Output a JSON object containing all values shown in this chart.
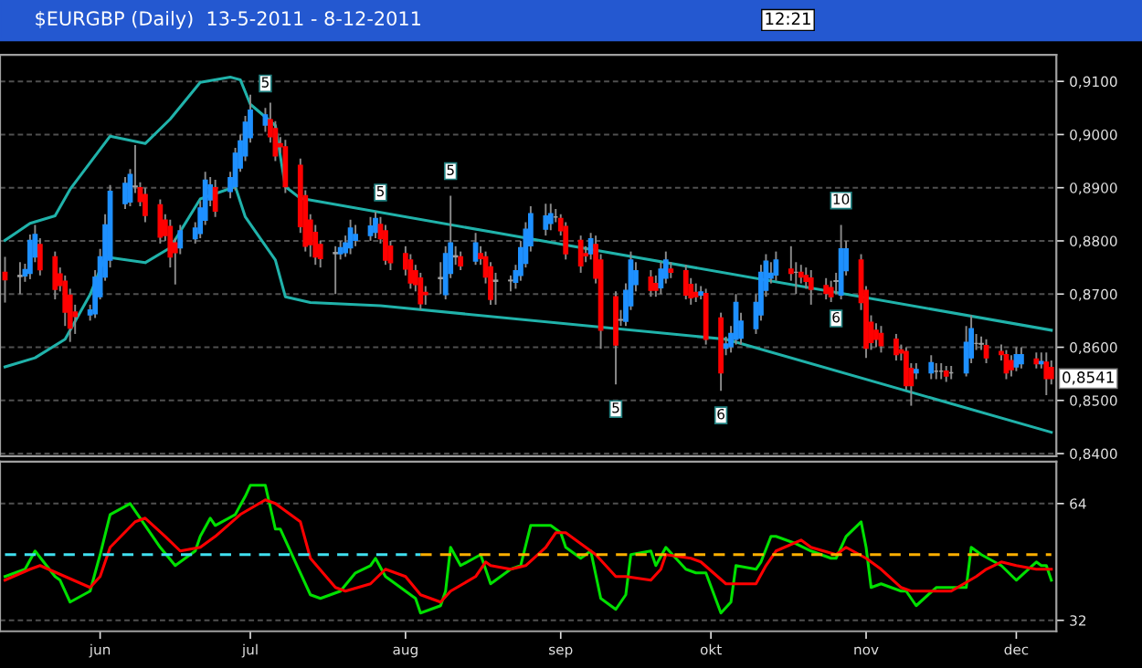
{
  "chart_data": [
    {
      "type": "candlestick",
      "title": "$EURGBP (Daily)  13-5-2011 - 8-12-2011",
      "x": [
        "2011-05-13",
        "2011-05-16",
        "2011-05-17",
        "2011-05-18",
        "2011-05-19",
        "2011-05-20",
        "2011-05-23",
        "2011-05-24",
        "2011-05-25",
        "2011-05-26",
        "2011-05-27",
        "2011-05-30",
        "2011-05-31",
        "2011-06-01",
        "2011-06-02",
        "2011-06-03",
        "2011-06-06",
        "2011-06-07",
        "2011-06-08",
        "2011-06-09",
        "2011-06-10",
        "2011-06-13",
        "2011-06-14",
        "2011-06-15",
        "2011-06-16",
        "2011-06-17",
        "2011-06-20",
        "2011-06-21",
        "2011-06-22",
        "2011-06-23",
        "2011-06-24",
        "2011-06-27",
        "2011-06-28",
        "2011-06-29",
        "2011-06-30",
        "2011-07-01",
        "2011-07-04",
        "2011-07-05",
        "2011-07-06",
        "2011-07-07",
        "2011-07-08",
        "2011-07-11",
        "2011-07-12",
        "2011-07-13",
        "2011-07-14",
        "2011-07-15",
        "2011-07-18",
        "2011-07-19",
        "2011-07-20",
        "2011-07-21",
        "2011-07-22",
        "2011-07-25",
        "2011-07-26",
        "2011-07-27",
        "2011-07-28",
        "2011-07-29",
        "2011-08-01",
        "2011-08-02",
        "2011-08-03",
        "2011-08-04",
        "2011-08-05",
        "2011-08-08",
        "2011-08-09",
        "2011-08-10",
        "2011-08-11",
        "2011-08-12",
        "2011-08-15",
        "2011-08-16",
        "2011-08-17",
        "2011-08-18",
        "2011-08-19",
        "2011-08-22",
        "2011-08-23",
        "2011-08-24",
        "2011-08-25",
        "2011-08-26",
        "2011-08-29",
        "2011-08-30",
        "2011-08-31",
        "2011-09-01",
        "2011-09-02",
        "2011-09-05",
        "2011-09-06",
        "2011-09-07",
        "2011-09-08",
        "2011-09-09",
        "2011-09-12",
        "2011-09-13",
        "2011-09-14",
        "2011-09-15",
        "2011-09-16",
        "2011-09-19",
        "2011-09-20",
        "2011-09-21",
        "2011-09-22",
        "2011-09-23",
        "2011-09-26",
        "2011-09-27",
        "2011-09-28",
        "2011-09-29",
        "2011-09-30",
        "2011-10-03",
        "2011-10-04",
        "2011-10-05",
        "2011-10-06",
        "2011-10-07",
        "2011-10-10",
        "2011-10-11",
        "2011-10-12",
        "2011-10-13",
        "2011-10-14",
        "2011-10-17",
        "2011-10-18",
        "2011-10-19",
        "2011-10-20",
        "2011-10-21",
        "2011-10-24",
        "2011-10-25",
        "2011-10-26",
        "2011-10-27",
        "2011-10-28",
        "2011-10-31",
        "2011-11-01",
        "2011-11-02",
        "2011-11-03",
        "2011-11-04",
        "2011-11-07",
        "2011-11-08",
        "2011-11-09",
        "2011-11-10",
        "2011-11-11",
        "2011-11-14",
        "2011-11-15",
        "2011-11-16",
        "2011-11-17",
        "2011-11-18",
        "2011-11-21",
        "2011-11-22",
        "2011-11-23",
        "2011-11-24",
        "2011-11-25",
        "2011-11-28",
        "2011-11-29",
        "2011-11-30",
        "2011-12-01",
        "2011-12-02",
        "2011-12-05",
        "2011-12-06",
        "2011-12-07",
        "2011-12-08"
      ],
      "ohlc": [
        [
          0.8741,
          0.877,
          0.8684,
          0.8727
        ],
        [
          0.8733,
          0.876,
          0.87,
          0.8735
        ],
        [
          0.8734,
          0.8757,
          0.8723,
          0.8746
        ],
        [
          0.8739,
          0.8812,
          0.8728,
          0.8801
        ],
        [
          0.877,
          0.883,
          0.876,
          0.8812
        ],
        [
          0.8793,
          0.8805,
          0.8735,
          0.8746
        ],
        [
          0.877,
          0.878,
          0.869,
          0.8709
        ],
        [
          0.8738,
          0.875,
          0.8705,
          0.8716
        ],
        [
          0.8724,
          0.8735,
          0.864,
          0.8666
        ],
        [
          0.8698,
          0.871,
          0.861,
          0.8636
        ],
        [
          0.8666,
          0.868,
          0.8625,
          0.8658
        ],
        [
          0.8661,
          0.868,
          0.865,
          0.867
        ],
        [
          0.8663,
          0.8745,
          0.8655,
          0.8732
        ],
        [
          0.8695,
          0.8785,
          0.869,
          0.877
        ],
        [
          0.8732,
          0.885,
          0.8725,
          0.883
        ],
        [
          0.8764,
          0.8905,
          0.875,
          0.8893
        ],
        [
          0.887,
          0.892,
          0.886,
          0.8908
        ],
        [
          0.8873,
          0.8935,
          0.8865,
          0.8925
        ],
        [
          0.8903,
          0.898,
          0.889,
          0.8902
        ],
        [
          0.89,
          0.891,
          0.8865,
          0.8874
        ],
        [
          0.8887,
          0.89,
          0.8835,
          0.8848
        ],
        [
          0.8868,
          0.8878,
          0.8795,
          0.8807
        ],
        [
          0.8839,
          0.885,
          0.88,
          0.881
        ],
        [
          0.8827,
          0.884,
          0.875,
          0.877
        ],
        [
          0.8796,
          0.8805,
          0.8718,
          0.8778
        ],
        [
          0.8787,
          0.883,
          0.8775,
          0.8819
        ],
        [
          0.8804,
          0.8835,
          0.8795,
          0.8824
        ],
        [
          0.8814,
          0.8875,
          0.8805,
          0.8862
        ],
        [
          0.8839,
          0.893,
          0.883,
          0.8914
        ],
        [
          0.8877,
          0.892,
          0.8865,
          0.8905
        ],
        [
          0.89,
          0.8915,
          0.8845,
          0.8856
        ],
        [
          0.8893,
          0.893,
          0.888,
          0.8919
        ],
        [
          0.8902,
          0.8975,
          0.8895,
          0.8965
        ],
        [
          0.8937,
          0.9,
          0.893,
          0.8988
        ],
        [
          0.896,
          0.9035,
          0.895,
          0.9023
        ],
        [
          0.8994,
          0.9075,
          0.8985,
          0.9046
        ],
        [
          0.9018,
          0.905,
          0.9005,
          0.9037
        ],
        [
          0.9028,
          0.906,
          0.8985,
          0.8996
        ],
        [
          0.9011,
          0.9025,
          0.895,
          0.896
        ],
        [
          0.8983,
          0.8995,
          0.8965,
          0.8977
        ],
        [
          0.8977,
          0.899,
          0.889,
          0.8902
        ],
        [
          0.8942,
          0.8955,
          0.8815,
          0.8827
        ],
        [
          0.8885,
          0.8895,
          0.878,
          0.879
        ],
        [
          0.8839,
          0.885,
          0.877,
          0.8793
        ],
        [
          0.8816,
          0.883,
          0.8755,
          0.877
        ],
        [
          0.8793,
          0.88,
          0.875,
          0.8767
        ],
        [
          0.8778,
          0.879,
          0.87,
          0.8776
        ],
        [
          0.8776,
          0.88,
          0.8765,
          0.8787
        ],
        [
          0.8778,
          0.881,
          0.877,
          0.8796
        ],
        [
          0.8787,
          0.884,
          0.8775,
          0.8824
        ],
        [
          0.8801,
          0.883,
          0.879,
          0.8812
        ],
        [
          0.881,
          0.8845,
          0.88,
          0.8828
        ],
        [
          0.8816,
          0.8855,
          0.8805,
          0.8842
        ],
        [
          0.8831,
          0.8845,
          0.8795,
          0.8804
        ],
        [
          0.8819,
          0.883,
          0.8755,
          0.8764
        ],
        [
          0.879,
          0.88,
          0.8745,
          0.8759
        ],
        [
          0.8776,
          0.879,
          0.8735,
          0.8747
        ],
        [
          0.8764,
          0.8775,
          0.871,
          0.8721
        ],
        [
          0.8744,
          0.8755,
          0.8705,
          0.8718
        ],
        [
          0.873,
          0.874,
          0.867,
          0.8682
        ],
        [
          0.8703,
          0.8715,
          0.868,
          0.8699
        ],
        [
          0.8729,
          0.876,
          0.87,
          0.8731
        ],
        [
          0.8699,
          0.879,
          0.869,
          0.8776
        ],
        [
          0.8739,
          0.8885,
          0.873,
          0.8796
        ],
        [
          0.877,
          0.879,
          0.8755,
          0.8772
        ],
        [
          0.877,
          0.878,
          0.8745,
          0.8753
        ],
        [
          0.8762,
          0.8815,
          0.8755,
          0.8796
        ],
        [
          0.8776,
          0.879,
          0.8755,
          0.8767
        ],
        [
          0.877,
          0.878,
          0.872,
          0.8732
        ],
        [
          0.8751,
          0.876,
          0.868,
          0.869
        ],
        [
          0.8724,
          0.874,
          0.868,
          0.8726
        ],
        [
          0.8726,
          0.8735,
          0.8705,
          0.8725
        ],
        [
          0.8722,
          0.8755,
          0.871,
          0.8744
        ],
        [
          0.8735,
          0.88,
          0.8725,
          0.8787
        ],
        [
          0.8758,
          0.8835,
          0.875,
          0.8822
        ],
        [
          0.8791,
          0.8865,
          0.878,
          0.8851
        ],
        [
          0.8822,
          0.887,
          0.881,
          0.8847
        ],
        [
          0.8833,
          0.887,
          0.882,
          0.8851
        ],
        [
          0.8845,
          0.886,
          0.8835,
          0.8845
        ],
        [
          0.8842,
          0.885,
          0.881,
          0.8819
        ],
        [
          0.8827,
          0.8835,
          0.8765,
          0.8776
        ],
        [
          0.8801,
          0.881,
          0.874,
          0.8753
        ],
        [
          0.8776,
          0.879,
          0.876,
          0.8772
        ],
        [
          0.8776,
          0.8815,
          0.8765,
          0.8804
        ],
        [
          0.8793,
          0.881,
          0.872,
          0.873
        ],
        [
          0.8764,
          0.8775,
          0.8597,
          0.8632
        ],
        [
          0.8695,
          0.8705,
          0.853,
          0.8604
        ],
        [
          0.8651,
          0.867,
          0.864,
          0.8652
        ],
        [
          0.8649,
          0.872,
          0.864,
          0.8707
        ],
        [
          0.8678,
          0.878,
          0.867,
          0.8764
        ],
        [
          0.8718,
          0.876,
          0.8705,
          0.8744
        ],
        [
          0.8732,
          0.8745,
          0.8695,
          0.8707
        ],
        [
          0.872,
          0.8735,
          0.8695,
          0.8707
        ],
        [
          0.8712,
          0.876,
          0.87,
          0.8747
        ],
        [
          0.873,
          0.878,
          0.872,
          0.8764
        ],
        [
          0.8747,
          0.876,
          0.873,
          0.8741
        ],
        [
          0.8744,
          0.8755,
          0.869,
          0.8698
        ],
        [
          0.8718,
          0.873,
          0.868,
          0.8693
        ],
        [
          0.8703,
          0.872,
          0.8685,
          0.8695
        ],
        [
          0.8698,
          0.8715,
          0.869,
          0.8704
        ],
        [
          0.8701,
          0.871,
          0.8605,
          0.8615
        ],
        [
          0.8655,
          0.8665,
          0.8518,
          0.8552
        ],
        [
          0.8598,
          0.862,
          0.8585,
          0.8606
        ],
        [
          0.8601,
          0.864,
          0.859,
          0.8626
        ],
        [
          0.8615,
          0.87,
          0.8605,
          0.8684
        ],
        [
          0.8617,
          0.8665,
          0.8605,
          0.8649
        ],
        [
          0.8635,
          0.87,
          0.8625,
          0.8684
        ],
        [
          0.8661,
          0.8755,
          0.865,
          0.8741
        ],
        [
          0.8707,
          0.8775,
          0.8695,
          0.8762
        ],
        [
          0.873,
          0.876,
          0.872,
          0.8739
        ],
        [
          0.8736,
          0.878,
          0.8725,
          0.8764
        ],
        [
          0.8747,
          0.879,
          0.8725,
          0.8739
        ],
        [
          0.8741,
          0.876,
          0.87,
          0.8741
        ],
        [
          0.8741,
          0.8755,
          0.872,
          0.8732
        ],
        [
          0.8735,
          0.875,
          0.871,
          0.8724
        ],
        [
          0.873,
          0.8745,
          0.868,
          0.8709
        ],
        [
          0.8716,
          0.873,
          0.869,
          0.8701
        ],
        [
          0.8712,
          0.8725,
          0.8685,
          0.8695
        ],
        [
          0.8724,
          0.874,
          0.87,
          0.8725
        ],
        [
          0.8698,
          0.883,
          0.869,
          0.8785
        ],
        [
          0.8744,
          0.88,
          0.8735,
          0.8785
        ],
        [
          0.8764,
          0.8775,
          0.867,
          0.8684
        ],
        [
          0.8707,
          0.8715,
          0.858,
          0.8598
        ],
        [
          0.8647,
          0.866,
          0.8595,
          0.8609
        ],
        [
          0.8632,
          0.8645,
          0.86,
          0.8615
        ],
        [
          0.8626,
          0.864,
          0.859,
          0.8603
        ],
        [
          0.8615,
          0.8625,
          0.8575,
          0.8586
        ],
        [
          0.8595,
          0.8605,
          0.8575,
          0.8589
        ],
        [
          0.8592,
          0.86,
          0.852,
          0.8528
        ],
        [
          0.856,
          0.857,
          0.849,
          0.8528
        ],
        [
          0.8552,
          0.857,
          0.854,
          0.8558
        ],
        [
          0.8552,
          0.8585,
          0.854,
          0.8571
        ],
        [
          0.8555,
          0.857,
          0.854,
          0.8555
        ],
        [
          0.8555,
          0.857,
          0.854,
          0.8555
        ],
        [
          0.8555,
          0.8565,
          0.8535,
          0.8546
        ],
        [
          0.8552,
          0.8565,
          0.854,
          0.8552
        ],
        [
          0.8552,
          0.864,
          0.8545,
          0.8609
        ],
        [
          0.858,
          0.866,
          0.857,
          0.8635
        ],
        [
          0.8607,
          0.8625,
          0.8595,
          0.8607
        ],
        [
          0.8607,
          0.862,
          0.8595,
          0.8606
        ],
        [
          0.8603,
          0.8615,
          0.857,
          0.858
        ],
        [
          0.8592,
          0.8605,
          0.8575,
          0.8586
        ],
        [
          0.8586,
          0.8595,
          0.854,
          0.8552
        ],
        [
          0.8575,
          0.8585,
          0.8545,
          0.8558
        ],
        [
          0.8563,
          0.86,
          0.8555,
          0.8586
        ],
        [
          0.8569,
          0.86,
          0.856,
          0.8586
        ],
        [
          0.8578,
          0.859,
          0.856,
          0.8569
        ],
        [
          0.8569,
          0.859,
          0.856,
          0.8573
        ],
        [
          0.8572,
          0.859,
          0.851,
          0.8541
        ],
        [
          0.8562,
          0.8575,
          0.853,
          0.8541
        ]
      ],
      "colors": [
        "#ff0000",
        "#a0a0a0",
        "#1e90ff",
        "#1e90ff",
        "#1e90ff",
        "#ff0000",
        "#ff0000",
        "#ff0000",
        "#ff0000",
        "#ff0000",
        "#ff0000",
        "#1e90ff",
        "#1e90ff",
        "#1e90ff",
        "#1e90ff",
        "#1e90ff",
        "#1e90ff",
        "#1e90ff",
        "#a0a0a0",
        "#ff0000",
        "#ff0000",
        "#ff0000",
        "#ff0000",
        "#ff0000",
        "#ff0000",
        "#1e90ff",
        "#1e90ff",
        "#1e90ff",
        "#1e90ff",
        "#1e90ff",
        "#ff0000",
        "#1e90ff",
        "#1e90ff",
        "#1e90ff",
        "#1e90ff",
        "#1e90ff",
        "#1e90ff",
        "#ff0000",
        "#ff0000",
        "#ff0000",
        "#ff0000",
        "#ff0000",
        "#ff0000",
        "#ff0000",
        "#ff0000",
        "#ff0000",
        "#a0a0a0",
        "#1e90ff",
        "#1e90ff",
        "#1e90ff",
        "#1e90ff",
        "#1e90ff",
        "#1e90ff",
        "#ff0000",
        "#ff0000",
        "#ff0000",
        "#ff0000",
        "#ff0000",
        "#ff0000",
        "#ff0000",
        "#ff0000",
        "#a0a0a0",
        "#1e90ff",
        "#1e90ff",
        "#a0a0a0",
        "#ff0000",
        "#1e90ff",
        "#ff0000",
        "#ff0000",
        "#ff0000",
        "#a0a0a0",
        "#a0a0a0",
        "#1e90ff",
        "#1e90ff",
        "#1e90ff",
        "#1e90ff",
        "#1e90ff",
        "#1e90ff",
        "#a0a0a0",
        "#ff0000",
        "#ff0000",
        "#ff0000",
        "#ff0000",
        "#1e90ff",
        "#ff0000",
        "#ff0000",
        "#ff0000",
        "#a0a0a0",
        "#1e90ff",
        "#1e90ff",
        "#1e90ff",
        "#ff0000",
        "#ff0000",
        "#1e90ff",
        "#1e90ff",
        "#ff0000",
        "#ff0000",
        "#ff0000",
        "#ff0000",
        "#1e90ff",
        "#ff0000",
        "#ff0000",
        "#1e90ff",
        "#1e90ff",
        "#1e90ff",
        "#1e90ff",
        "#1e90ff",
        "#1e90ff",
        "#1e90ff",
        "#1e90ff",
        "#1e90ff",
        "#ff0000",
        "#a0a0a0",
        "#ff0000",
        "#ff0000",
        "#ff0000",
        "#ff0000",
        "#ff0000",
        "#a0a0a0",
        "#1e90ff",
        "#1e90ff",
        "#ff0000",
        "#ff0000",
        "#ff0000",
        "#ff0000",
        "#ff0000",
        "#ff0000",
        "#ff0000",
        "#ff0000",
        "#ff0000",
        "#1e90ff",
        "#1e90ff",
        "#a0a0a0",
        "#a0a0a0",
        "#ff0000",
        "#a0a0a0",
        "#1e90ff",
        "#1e90ff",
        "#a0a0a0",
        "#a0a0a0",
        "#ff0000",
        "#ff0000",
        "#ff0000",
        "#ff0000",
        "#1e90ff",
        "#1e90ff",
        "#ff0000",
        "#1e90ff",
        "#ff0000",
        "#ff0000"
      ],
      "series": [
        {
          "type": "line",
          "color": "#20b2aa",
          "x": [
            "2011-05-13",
            "2011-05-18",
            "2011-05-23",
            "2011-05-26",
            "2011-06-03",
            "2011-06-10",
            "2011-06-15",
            "2011-06-21",
            "2011-06-27",
            "2011-06-29",
            "2011-07-01",
            "2011-07-06",
            "2011-07-08",
            "2011-07-11",
            "2011-09-01",
            "2011-12-08"
          ],
          "values": [
            0.8801,
            0.8833,
            0.8847,
            0.8897,
            0.8997,
            0.8983,
            0.9029,
            0.9098,
            0.9108,
            0.9103,
            0.9057,
            0.9017,
            0.8902,
            0.888,
            0.8794,
            0.8632
          ]
        },
        {
          "type": "line",
          "color": "#20b2aa",
          "x": [
            "2011-05-13",
            "2011-05-19",
            "2011-05-25",
            "2011-05-30",
            "2011-06-02",
            "2011-06-10",
            "2011-06-15",
            "2011-06-21",
            "2011-06-28",
            "2011-06-30",
            "2011-07-06",
            "2011-07-08",
            "2011-07-13",
            "2011-07-27",
            "2011-10-04",
            "2011-12-08"
          ],
          "values": [
            0.8563,
            0.858,
            0.8615,
            0.8699,
            0.877,
            0.8759,
            0.8787,
            0.8879,
            0.8902,
            0.8845,
            0.8764,
            0.8695,
            0.8684,
            0.8678,
            0.8615,
            0.844
          ]
        }
      ],
      "xlim": [
        "2011-05-12",
        "2011-12-09"
      ],
      "ylim": [
        0.8395,
        0.915
      ],
      "yticks": [
        {
          "value": 0.84,
          "label": "0,8400"
        },
        {
          "value": 0.85,
          "label": "0,8500"
        },
        {
          "value": 0.86,
          "label": "0,8600"
        },
        {
          "value": 0.87,
          "label": "0,8700"
        },
        {
          "value": 0.88,
          "label": "0,8800"
        },
        {
          "value": 0.89,
          "label": "0,8900"
        },
        {
          "value": 0.9,
          "label": "0,9000"
        },
        {
          "value": 0.91,
          "label": "0,9100"
        }
      ],
      "grid": "y",
      "tick_labels": "y",
      "annotations": [
        "12:21",
        {
          "text": "5",
          "x": "2011-07-04",
          "y": 0.905
        },
        {
          "text": "5",
          "x": "2011-07-27",
          "y": 0.8845
        },
        {
          "text": "5",
          "x": "2011-08-10",
          "y": 0.8885
        },
        {
          "text": "10",
          "x": "2011-10-27",
          "y": 0.883
        },
        {
          "text": "5",
          "x": "2011-09-12",
          "y": 0.853
        },
        {
          "text": "6",
          "x": "2011-10-03",
          "y": 0.8518
        },
        {
          "text": "6",
          "x": "2011-10-26",
          "y": 0.87
        },
        {
          "text": "0,8541",
          "x": "2011-12-08",
          "y": 0.8541
        }
      ]
    },
    {
      "type": "line",
      "series": [
        {
          "color": "#00e000",
          "x": [
            "2011-05-13",
            "2011-05-17",
            "2011-05-19",
            "2011-05-23",
            "2011-05-24",
            "2011-05-26",
            "2011-05-30",
            "2011-06-01",
            "2011-06-03",
            "2011-06-07",
            "2011-06-08",
            "2011-06-13",
            "2011-06-16",
            "2011-06-20",
            "2011-06-21",
            "2011-06-23",
            "2011-06-24",
            "2011-06-28",
            "2011-06-30",
            "2011-07-01",
            "2011-07-04",
            "2011-07-06",
            "2011-07-07",
            "2011-07-11",
            "2011-07-13",
            "2011-07-15",
            "2011-07-19",
            "2011-07-22",
            "2011-07-25",
            "2011-07-26",
            "2011-07-28",
            "2011-08-01",
            "2011-08-03",
            "2011-08-04",
            "2011-08-08",
            "2011-08-09",
            "2011-08-10",
            "2011-08-12",
            "2011-08-16",
            "2011-08-18",
            "2011-08-22",
            "2011-08-24",
            "2011-08-26",
            "2011-08-30",
            "2011-09-01",
            "2011-09-02",
            "2011-09-05",
            "2011-09-07",
            "2011-09-09",
            "2011-09-12",
            "2011-09-14",
            "2011-09-15",
            "2011-09-19",
            "2011-09-20",
            "2011-09-22",
            "2011-09-26",
            "2011-09-28",
            "2011-09-30",
            "2011-10-03",
            "2011-10-05",
            "2011-10-06",
            "2011-10-10",
            "2011-10-11",
            "2011-10-13",
            "2011-10-14",
            "2011-10-18",
            "2011-10-21",
            "2011-10-25",
            "2011-10-26",
            "2011-10-28",
            "2011-10-31",
            "2011-11-01",
            "2011-11-02",
            "2011-11-04",
            "2011-11-08",
            "2011-11-09",
            "2011-11-11",
            "2011-11-15",
            "2011-11-16",
            "2011-11-21",
            "2011-11-22",
            "2011-11-24",
            "2011-11-28",
            "2011-12-01",
            "2011-12-05",
            "2011-12-06",
            "2011-12-07",
            "2011-12-08"
          ],
          "values": [
            44,
            46,
            51,
            44,
            43,
            37,
            40,
            50,
            61,
            64,
            62,
            52,
            47,
            51,
            55,
            60,
            58,
            61,
            66,
            69,
            69,
            57,
            57,
            45,
            39,
            38,
            40,
            45,
            47,
            49,
            44,
            40,
            38,
            34,
            36,
            40,
            52,
            47,
            50,
            42,
            46,
            47,
            58,
            58,
            56,
            52,
            49,
            51,
            38,
            35,
            39,
            50,
            51,
            47,
            52,
            46,
            45,
            45,
            34,
            37,
            47,
            46,
            48,
            55,
            55,
            53,
            51,
            49,
            49,
            55,
            59,
            52,
            41,
            42,
            40,
            40,
            36,
            41,
            41,
            41,
            52,
            50,
            47,
            43,
            48,
            47,
            47,
            43
          ]
        },
        {
          "color": "#ff0000",
          "x": [
            "2011-05-13",
            "2011-05-18",
            "2011-05-20",
            "2011-05-25",
            "2011-05-30",
            "2011-06-01",
            "2011-06-03",
            "2011-06-08",
            "2011-06-10",
            "2011-06-14",
            "2011-06-17",
            "2011-06-21",
            "2011-06-24",
            "2011-06-29",
            "2011-07-04",
            "2011-07-06",
            "2011-07-11",
            "2011-07-13",
            "2011-07-18",
            "2011-07-20",
            "2011-07-25",
            "2011-07-28",
            "2011-08-01",
            "2011-08-04",
            "2011-08-08",
            "2011-08-10",
            "2011-08-15",
            "2011-08-17",
            "2011-08-18",
            "2011-08-22",
            "2011-08-25",
            "2011-08-29",
            "2011-08-31",
            "2011-09-02",
            "2011-09-05",
            "2011-09-08",
            "2011-09-12",
            "2011-09-14",
            "2011-09-19",
            "2011-09-21",
            "2011-09-22",
            "2011-09-27",
            "2011-09-29",
            "2011-10-04",
            "2011-10-06",
            "2011-10-10",
            "2011-10-12",
            "2011-10-14",
            "2011-10-19",
            "2011-10-21",
            "2011-10-26",
            "2011-10-28",
            "2011-11-01",
            "2011-11-04",
            "2011-11-08",
            "2011-11-10",
            "2011-11-15",
            "2011-11-18",
            "2011-11-23",
            "2011-11-25",
            "2011-11-28",
            "2011-12-01",
            "2011-12-05",
            "2011-12-07",
            "2011-12-08"
          ],
          "values": [
            43,
            46,
            47,
            44,
            41,
            44,
            52,
            59,
            60,
            55,
            51,
            52,
            55,
            61,
            65,
            64,
            59,
            49,
            41,
            40,
            42,
            46,
            44,
            39,
            37,
            40,
            44,
            48,
            47,
            46,
            47,
            52,
            56,
            56,
            53,
            50,
            44,
            44,
            43,
            46,
            50,
            49,
            48,
            42,
            42,
            42,
            47,
            51,
            54,
            52,
            50,
            52,
            49,
            46,
            41,
            40,
            40,
            40,
            44,
            46,
            48,
            47,
            46,
            46,
            46
          ]
        },
        {
          "color": "#40e0f0",
          "line_style": "dashed",
          "x": [
            "2011-05-13",
            "2011-08-04"
          ],
          "values": [
            50,
            50
          ]
        },
        {
          "color": "#ffb000",
          "line_style": "dashed",
          "x": [
            "2011-08-04",
            "2011-12-08"
          ],
          "values": [
            50,
            50
          ]
        }
      ],
      "xlim": [
        "2011-05-12",
        "2011-12-09"
      ],
      "ylim": [
        29,
        75.5
      ],
      "xticks": [
        {
          "value": "2011-06-01",
          "label": "jun"
        },
        {
          "value": "2011-07-01",
          "label": "jul"
        },
        {
          "value": "2011-08-01",
          "label": "aug"
        },
        {
          "value": "2011-09-01",
          "label": "sep"
        },
        {
          "value": "2011-10-01",
          "label": "okt"
        },
        {
          "value": "2011-11-01",
          "label": "nov"
        },
        {
          "value": "2011-12-01",
          "label": "dec"
        }
      ],
      "yticks": [
        32,
        64
      ],
      "grid": "y"
    }
  ]
}
